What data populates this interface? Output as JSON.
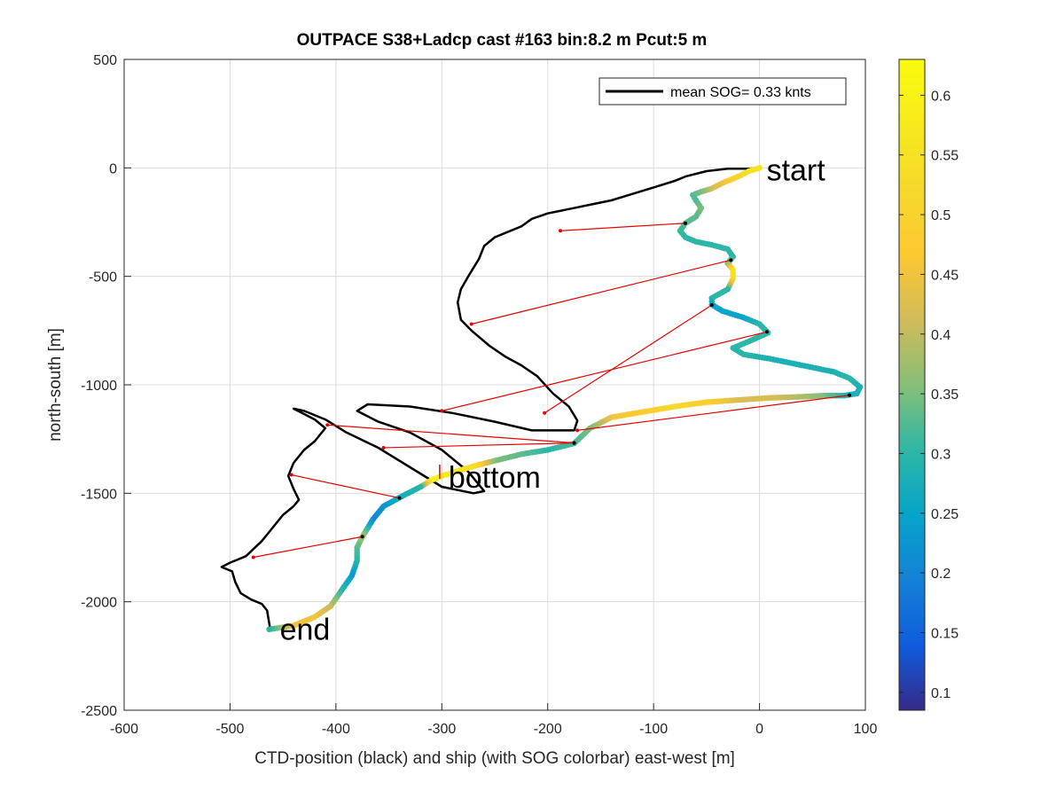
{
  "chart_data": {
    "type": "scatter",
    "title": "OUTPACE S38+Ladcp cast #163 bin:8.2 m  Pcut:5 m",
    "xlabel": "CTD-position (black) and ship (with SOG colorbar) east-west [m]",
    "ylabel": "north-south [m]",
    "xlim": [
      -600,
      100
    ],
    "ylim": [
      -2500,
      500
    ],
    "xticks": [
      "-600",
      "-500",
      "-400",
      "-300",
      "-200",
      "-100",
      "0",
      "100"
    ],
    "yticks": [
      "500",
      "0",
      "-500",
      "-1000",
      "-1500",
      "-2000",
      "-2500"
    ],
    "grid": true,
    "legend": {
      "placement": "top-right",
      "entries": [
        "mean SOG=  0.33 knts"
      ]
    },
    "colorbar": {
      "colormap": "parula",
      "range": [
        0.085,
        0.63
      ],
      "ticks": [
        "0.1",
        "0.15",
        "0.2",
        "0.25",
        "0.3",
        "0.35",
        "0.4",
        "0.45",
        "0.5",
        "0.55",
        "0.6"
      ]
    },
    "annotations": [
      {
        "text": "start",
        "x": 0,
        "y": 0
      },
      {
        "text": "bottom",
        "x": -302,
        "y": -1425
      },
      {
        "text": "end",
        "x": -463,
        "y": -2127
      }
    ],
    "series": [
      {
        "type": "line",
        "color": "#000000",
        "points": [
          [
            0,
            0
          ],
          [
            -10,
            -4
          ],
          [
            -30,
            -4
          ],
          [
            -50,
            -15
          ],
          [
            -70,
            -40
          ],
          [
            -80,
            -60
          ],
          [
            -100,
            -90
          ],
          [
            -120,
            -120
          ],
          [
            -140,
            -150
          ],
          [
            -160,
            -170
          ],
          [
            -180,
            -190
          ],
          [
            -200,
            -210
          ],
          [
            -215,
            -235
          ],
          [
            -225,
            -270
          ],
          [
            -240,
            -300
          ],
          [
            -250,
            -320
          ],
          [
            -260,
            -360
          ],
          [
            -265,
            -420
          ],
          [
            -275,
            -500
          ],
          [
            -282,
            -560
          ],
          [
            -285,
            -620
          ],
          [
            -282,
            -700
          ],
          [
            -272,
            -750
          ],
          [
            -255,
            -820
          ],
          [
            -240,
            -870
          ],
          [
            -225,
            -910
          ],
          [
            -210,
            -960
          ],
          [
            -195,
            -1040
          ],
          [
            -180,
            -1100
          ],
          [
            -172,
            -1165
          ],
          [
            -175,
            -1210
          ],
          [
            -215,
            -1210
          ],
          [
            -250,
            -1170
          ],
          [
            -290,
            -1130
          ],
          [
            -330,
            -1100
          ],
          [
            -370,
            -1090
          ],
          [
            -380,
            -1120
          ],
          [
            -360,
            -1170
          ],
          [
            -330,
            -1220
          ],
          [
            -300,
            -1300
          ],
          [
            -275,
            -1400
          ],
          [
            -260,
            -1490
          ],
          [
            -270,
            -1500
          ],
          [
            -300,
            -1470
          ],
          [
            -330,
            -1380
          ],
          [
            -360,
            -1290
          ],
          [
            -390,
            -1220
          ],
          [
            -410,
            -1160
          ],
          [
            -430,
            -1120
          ],
          [
            -440,
            -1110
          ],
          [
            -420,
            -1160
          ],
          [
            -410,
            -1200
          ],
          [
            -420,
            -1260
          ],
          [
            -430,
            -1300
          ],
          [
            -440,
            -1360
          ],
          [
            -445,
            -1420
          ],
          [
            -440,
            -1480
          ],
          [
            -435,
            -1530
          ],
          [
            -440,
            -1560
          ],
          [
            -450,
            -1600
          ],
          [
            -460,
            -1660
          ],
          [
            -470,
            -1720
          ],
          [
            -485,
            -1790
          ],
          [
            -500,
            -1820
          ],
          [
            -508,
            -1840
          ],
          [
            -498,
            -1860
          ],
          [
            -495,
            -1910
          ],
          [
            -490,
            -1960
          ],
          [
            -480,
            -1990
          ],
          [
            -470,
            -2010
          ],
          [
            -465,
            -2040
          ],
          [
            -462,
            -2127
          ]
        ]
      },
      {
        "type": "scatter",
        "colored_by": "SOG",
        "points": [
          [
            0,
            0,
            0.55
          ],
          [
            -10,
            -15,
            0.55
          ],
          [
            -20,
            -40,
            0.52
          ],
          [
            -35,
            -70,
            0.45
          ],
          [
            -45,
            -95,
            0.42
          ],
          [
            -55,
            -110,
            0.35
          ],
          [
            -63,
            -125,
            0.33
          ],
          [
            -60,
            -150,
            0.32
          ],
          [
            -55,
            -185,
            0.35
          ],
          [
            -60,
            -225,
            0.33
          ],
          [
            -70,
            -255,
            0.33
          ],
          [
            -75,
            -290,
            0.31
          ],
          [
            -70,
            -320,
            0.3
          ],
          [
            -60,
            -340,
            0.3
          ],
          [
            -45,
            -355,
            0.3
          ],
          [
            -30,
            -375,
            0.3
          ],
          [
            -25,
            -410,
            0.3
          ],
          [
            -30,
            -440,
            0.35
          ],
          [
            -25,
            -470,
            0.55
          ],
          [
            -25,
            -510,
            0.55
          ],
          [
            -30,
            -560,
            0.3
          ],
          [
            -45,
            -600,
            0.3
          ],
          [
            -45,
            -630,
            0.25
          ],
          [
            -35,
            -660,
            0.25
          ],
          [
            -15,
            -690,
            0.25
          ],
          [
            0,
            -720,
            0.3
          ],
          [
            8,
            -760,
            0.3
          ],
          [
            -10,
            -800,
            0.3
          ],
          [
            -25,
            -830,
            0.3
          ],
          [
            -15,
            -860,
            0.3
          ],
          [
            10,
            -880,
            0.28
          ],
          [
            30,
            -900,
            0.28
          ],
          [
            50,
            -920,
            0.28
          ],
          [
            70,
            -940,
            0.28
          ],
          [
            85,
            -970,
            0.3
          ],
          [
            95,
            -1010,
            0.28
          ],
          [
            92,
            -1040,
            0.28
          ],
          [
            80,
            -1050,
            0.28
          ],
          [
            60,
            -1050,
            0.35
          ],
          [
            40,
            -1055,
            0.38
          ],
          [
            10,
            -1060,
            0.42
          ],
          [
            -20,
            -1070,
            0.42
          ],
          [
            -50,
            -1080,
            0.48
          ],
          [
            -80,
            -1100,
            0.52
          ],
          [
            -110,
            -1125,
            0.48
          ],
          [
            -140,
            -1150,
            0.45
          ],
          [
            -160,
            -1200,
            0.35
          ],
          [
            -175,
            -1270,
            0.32
          ],
          [
            -200,
            -1300,
            0.3
          ],
          [
            -225,
            -1320,
            0.33
          ],
          [
            -250,
            -1350,
            0.35
          ],
          [
            -270,
            -1375,
            0.53
          ],
          [
            -300,
            -1420,
            0.58
          ],
          [
            -310,
            -1440,
            0.6
          ],
          [
            -320,
            -1470,
            0.3
          ],
          [
            -340,
            -1520,
            0.27
          ],
          [
            -355,
            -1560,
            0.23
          ],
          [
            -365,
            -1620,
            0.2
          ],
          [
            -375,
            -1700,
            0.38
          ],
          [
            -380,
            -1750,
            0.33
          ],
          [
            -380,
            -1810,
            0.3
          ],
          [
            -385,
            -1880,
            0.23
          ],
          [
            -395,
            -1950,
            0.3
          ],
          [
            -405,
            -2020,
            0.4
          ],
          [
            -420,
            -2070,
            0.45
          ],
          [
            -440,
            -2110,
            0.45
          ],
          [
            -463,
            -2127,
            0.3
          ]
        ]
      },
      {
        "type": "segments",
        "color": "#e60000",
        "pairs": [
          [
            [
              -70,
              -255
            ],
            [
              -188,
              -290
            ]
          ],
          [
            [
              -27,
              -425
            ],
            [
              -272,
              -720
            ]
          ],
          [
            [
              -45,
              -632
            ],
            [
              -203,
              -1130
            ]
          ],
          [
            [
              7,
              -756
            ],
            [
              -300,
              -1120
            ]
          ],
          [
            [
              85,
              -1048
            ],
            [
              -172,
              -1210
            ]
          ],
          [
            [
              -175,
              -1268
            ],
            [
              -408,
              -1185
            ]
          ],
          [
            [
              -175,
              -1268
            ],
            [
              -355,
              -1290
            ]
          ],
          [
            [
              -340,
              -1522
            ],
            [
              -442,
              -1415
            ]
          ],
          [
            [
              -375,
              -1700
            ],
            [
              -478,
              -1795
            ]
          ]
        ]
      }
    ]
  }
}
